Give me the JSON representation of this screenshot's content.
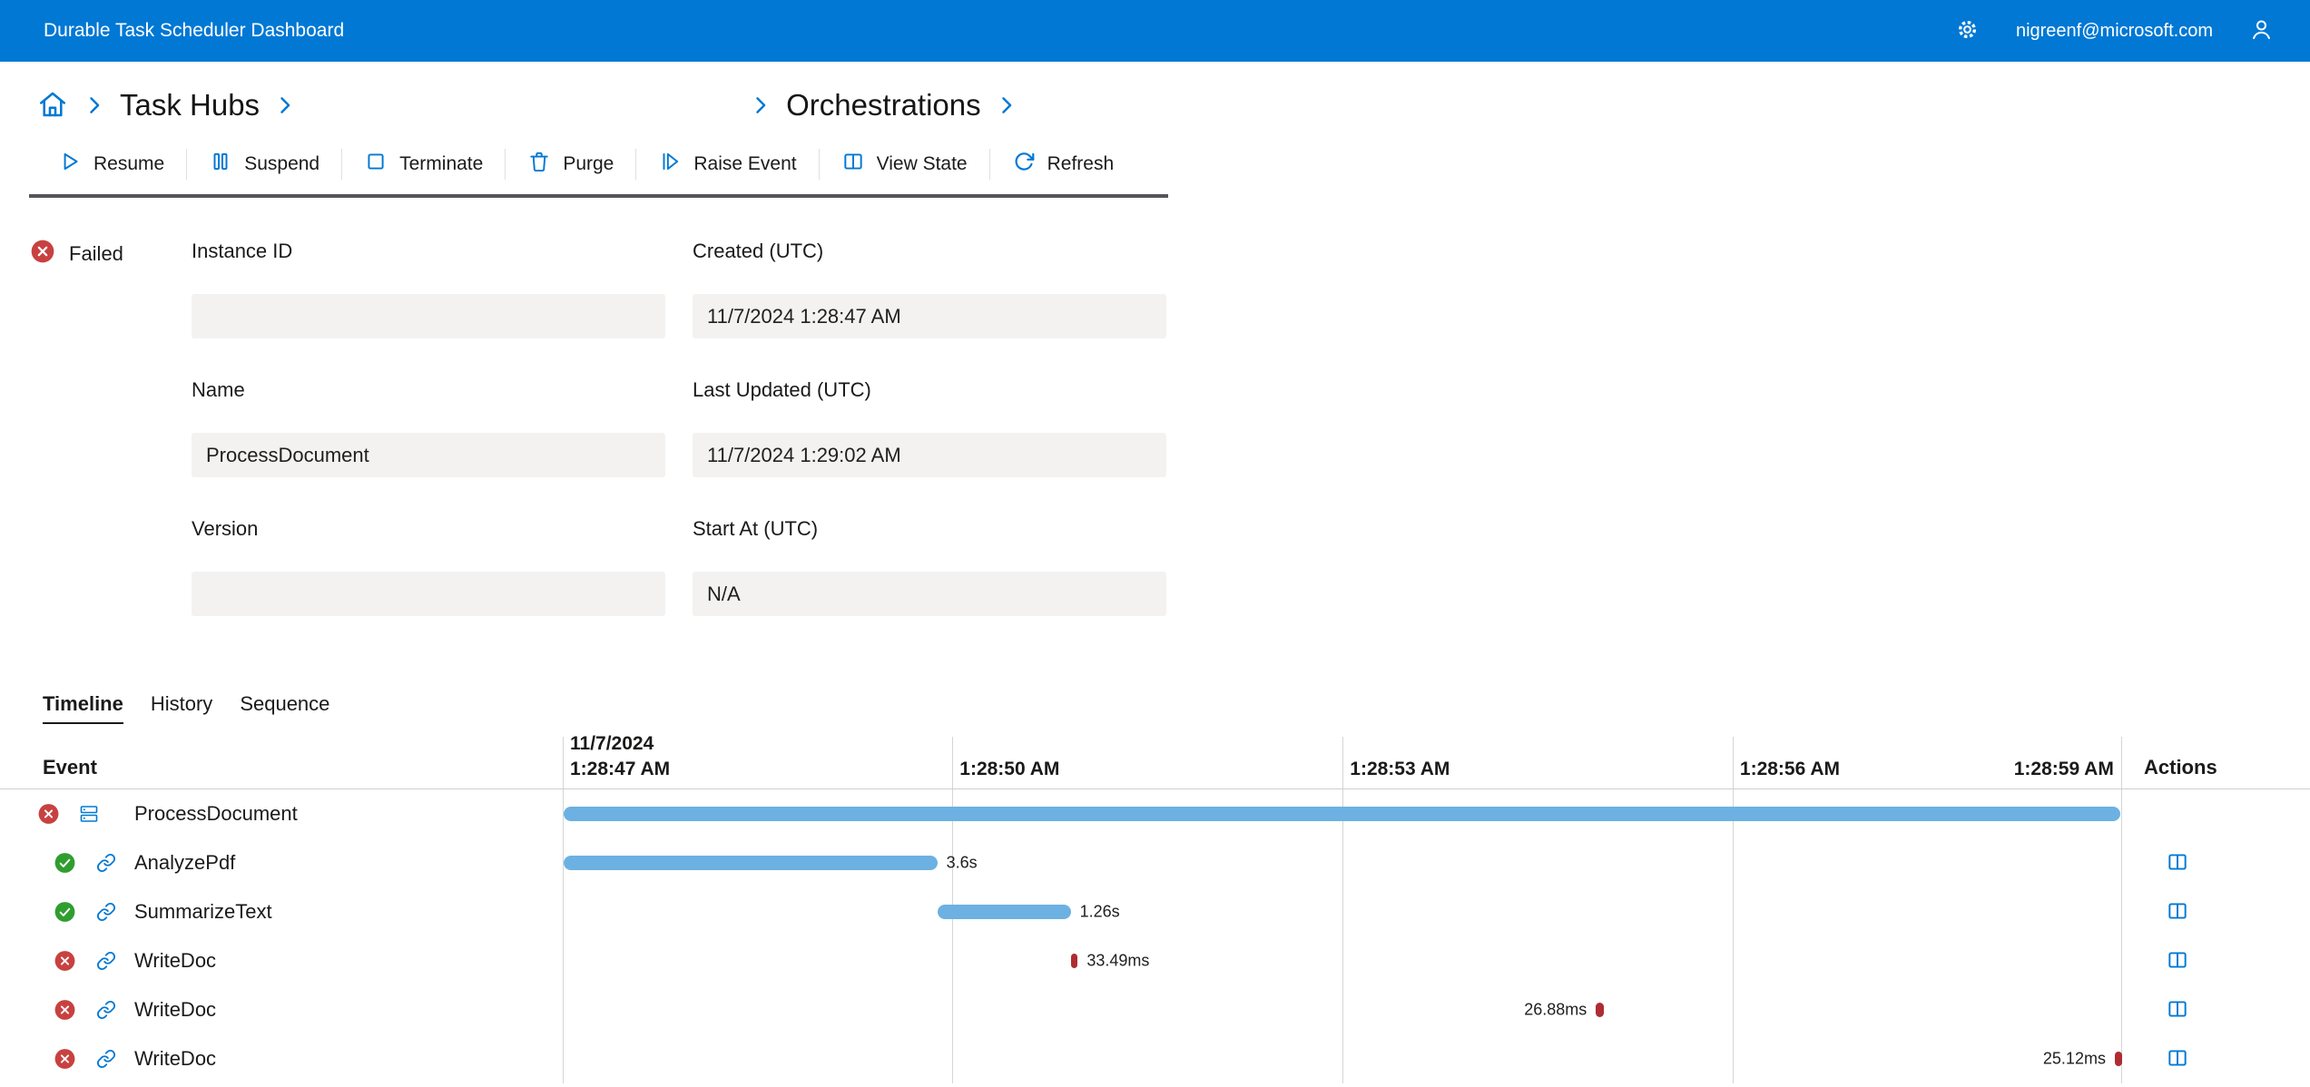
{
  "topbar": {
    "title": "Durable Task Scheduler Dashboard",
    "user_email": "nigreenf@microsoft.com"
  },
  "breadcrumb": {
    "task_hubs": "Task Hubs",
    "orchestrations": "Orchestrations"
  },
  "toolbar": {
    "buttons": [
      {
        "label": "Resume",
        "icon": "play-icon"
      },
      {
        "label": "Suspend",
        "icon": "pause-icon"
      },
      {
        "label": "Terminate",
        "icon": "stop-icon"
      },
      {
        "label": "Purge",
        "icon": "trash-icon"
      },
      {
        "label": "Raise Event",
        "icon": "raise-event-icon"
      },
      {
        "label": "View State",
        "icon": "pane-icon"
      },
      {
        "label": "Refresh",
        "icon": "refresh-icon"
      }
    ]
  },
  "status": {
    "label": "Failed"
  },
  "form": {
    "fields": [
      {
        "label": "Instance ID",
        "value": ""
      },
      {
        "label": "Created (UTC)",
        "value": "11/7/2024 1:28:47 AM"
      },
      {
        "label": "Name",
        "value": "ProcessDocument"
      },
      {
        "label": "Last Updated (UTC)",
        "value": "11/7/2024 1:29:02 AM"
      },
      {
        "label": "Version",
        "value": ""
      },
      {
        "label": "Start At (UTC)",
        "value": "N/A"
      }
    ]
  },
  "tabs": [
    {
      "label": "Timeline",
      "active": true
    },
    {
      "label": "History",
      "active": false
    },
    {
      "label": "Sequence",
      "active": false
    }
  ],
  "timeline": {
    "event_header": "Event",
    "actions_header": "Actions",
    "axis": {
      "date_label": "11/7/2024",
      "ticks": [
        {
          "label": "1:28:47 AM",
          "pct": 0,
          "with_date": true
        },
        {
          "label": "1:28:50 AM",
          "pct": 24.93
        },
        {
          "label": "1:28:53 AM",
          "pct": 49.9
        },
        {
          "label": "1:28:56 AM",
          "pct": 74.85
        },
        {
          "label": "1:28:59 AM",
          "pct": 99.7,
          "align": "right"
        }
      ]
    },
    "rows": [
      {
        "name": "ProcessDocument",
        "status": "failed",
        "icon": "orchestration",
        "bar": {
          "left_pct": 0.06,
          "width_pct": 99.6,
          "color": "#6cb1e2"
        },
        "duration": "",
        "duration_side": "right",
        "has_action": false
      },
      {
        "name": "AnalyzePdf",
        "status": "succeeded",
        "icon": "link",
        "bar": {
          "left_pct": 0.06,
          "width_pct": 23.9,
          "color": "#6cb1e2"
        },
        "duration": "3.6s",
        "duration_side": "right",
        "has_action": true
      },
      {
        "name": "SummarizeText",
        "status": "succeeded",
        "icon": "link",
        "bar": {
          "left_pct": 24.0,
          "width_pct": 8.5,
          "color": "#6cb1e2"
        },
        "duration": "1.26s",
        "duration_side": "right",
        "has_action": true
      },
      {
        "name": "WriteDoc",
        "status": "failed",
        "icon": "link",
        "bar": {
          "left_pct": 32.5,
          "width_pct": 0.45,
          "color": "#ae2c32"
        },
        "duration": "33.49ms",
        "duration_side": "right",
        "has_action": true
      },
      {
        "name": "WriteDoc",
        "status": "failed",
        "icon": "link",
        "bar": {
          "left_pct": 66.1,
          "width_pct": 0.5,
          "color": "#ae2c32"
        },
        "duration": "26.88ms",
        "duration_side": "left",
        "has_action": true
      },
      {
        "name": "WriteDoc",
        "status": "failed",
        "icon": "link",
        "bar": {
          "left_pct": 99.3,
          "width_pct": 0.45,
          "color": "#ae2c32"
        },
        "duration": "25.12ms",
        "duration_side": "left",
        "has_action": true
      }
    ]
  },
  "colors": {
    "topbar_blue": "#0078d4",
    "accent_blue": "#0078d4",
    "bar_blue": "#6cb1e2",
    "bar_red": "#ae2c32",
    "success_green": "#2f9e2f",
    "failure_red": "#c84141",
    "field_bg": "#f3f2f1"
  }
}
